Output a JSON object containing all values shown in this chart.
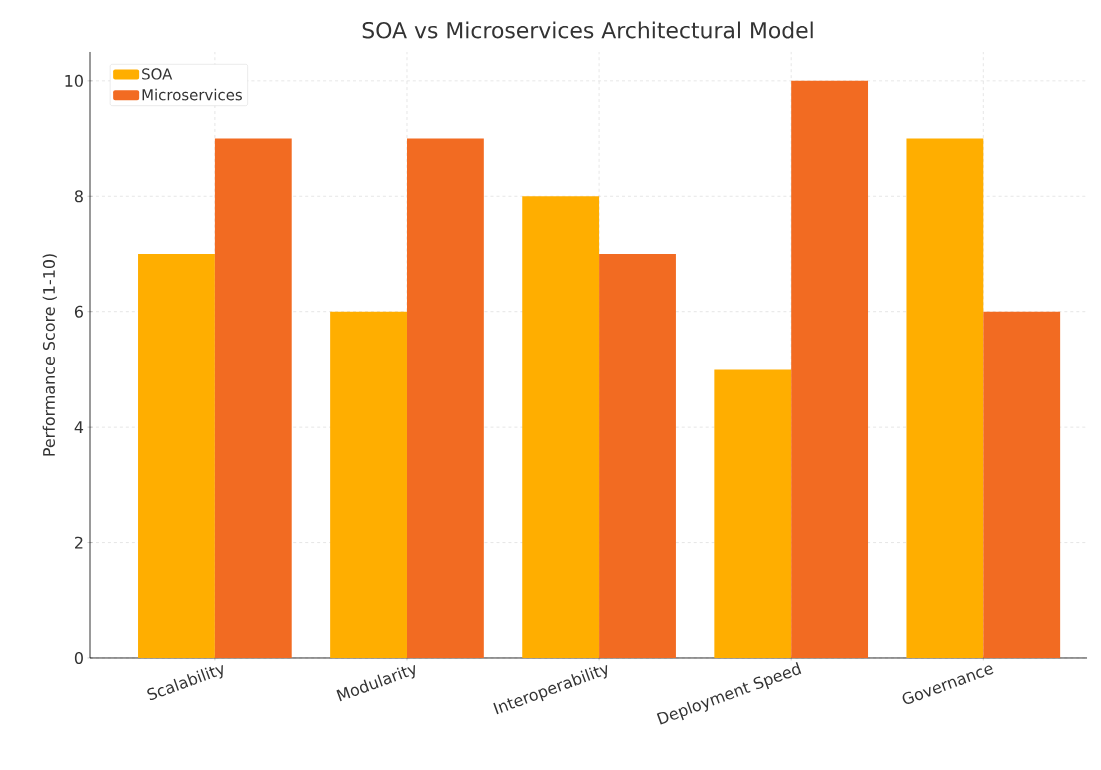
{
  "chart_data": {
    "type": "bar",
    "title": "SOA vs Microservices Architectural Model",
    "ylabel": "Performance Score (1-10)",
    "categories": [
      "Scalability",
      "Modularity",
      "Interoperability",
      "Deployment Speed",
      "Governance"
    ],
    "series": [
      {
        "name": "SOA",
        "color": "#ffae00",
        "values": [
          7,
          6,
          8,
          5,
          9
        ]
      },
      {
        "name": "Microservices",
        "color": "#f26b22",
        "values": [
          9,
          9,
          7,
          10,
          6
        ]
      }
    ],
    "ylim": [
      0,
      10.5
    ],
    "yticks": [
      0,
      2,
      4,
      6,
      8,
      10
    ],
    "grid": true,
    "legend": "top left"
  }
}
